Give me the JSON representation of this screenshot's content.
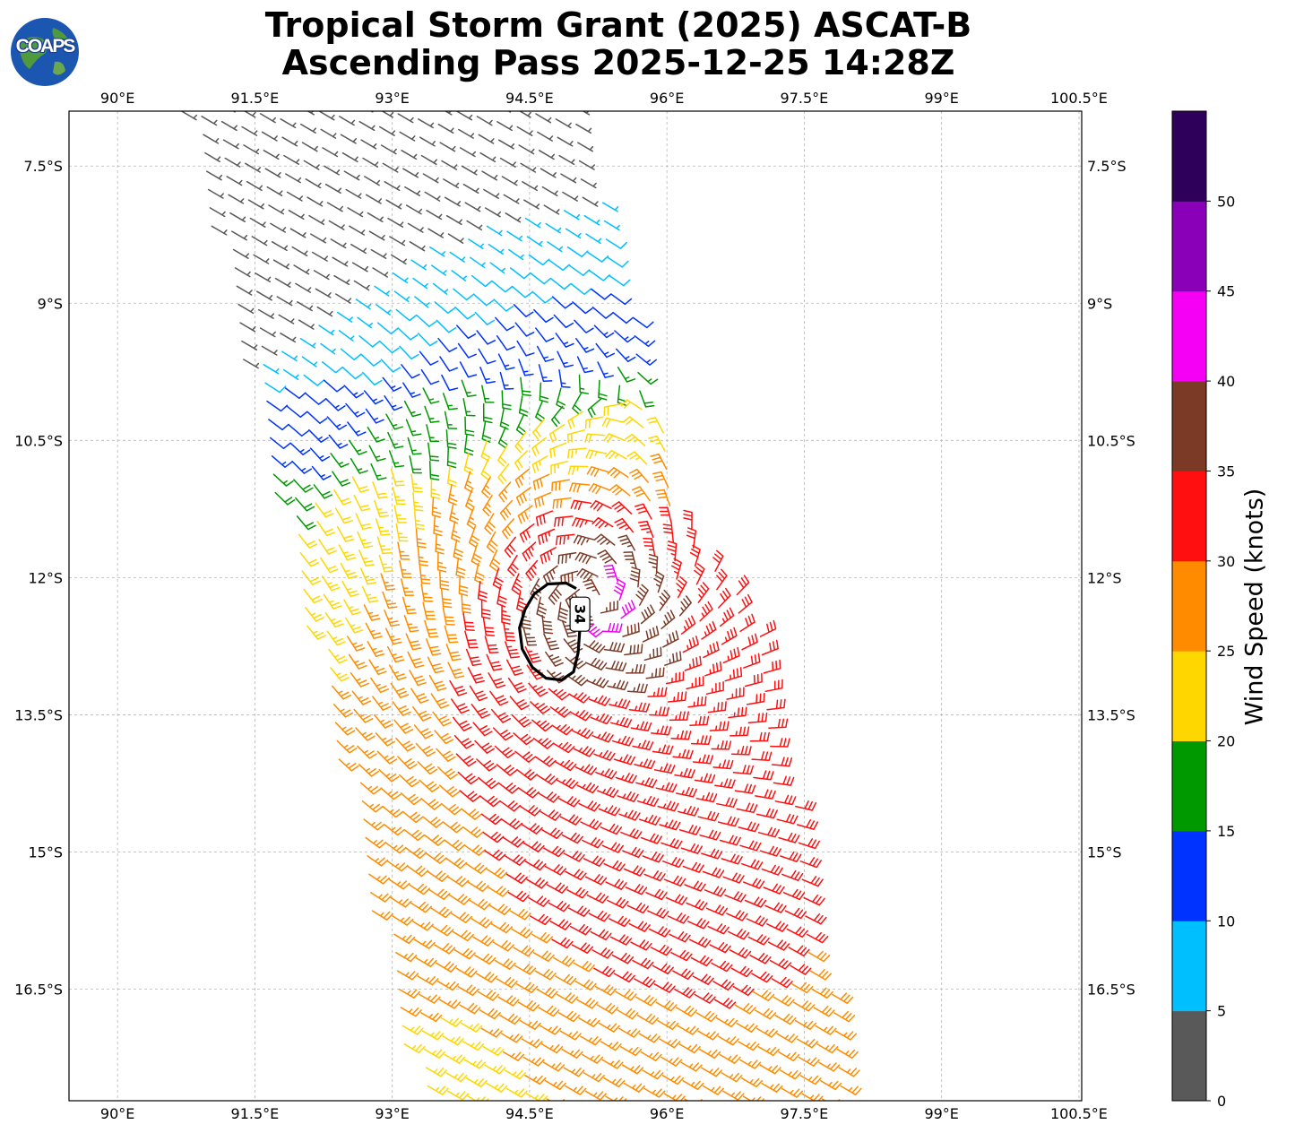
{
  "header": {
    "title_line1": "Tropical Storm Grant (2025) ASCAT-B",
    "title_line2": "Ascending Pass 2025-12-25 14:28Z",
    "logo_text": "COAPS"
  },
  "chart_data": {
    "type": "wind-barb map",
    "title": "Tropical Storm Grant (2025) ASCAT-B Ascending Pass 2025-12-25 14:28Z",
    "x_axis": {
      "ticks": [
        90,
        91.5,
        93,
        94.5,
        96,
        97.5,
        99,
        100.5
      ],
      "tick_labels": [
        "90°E",
        "91.5°E",
        "93°E",
        "94.5°E",
        "96°E",
        "97.5°E",
        "99°E",
        "100.5°E"
      ],
      "range": [
        89.47,
        100.53
      ]
    },
    "y_axis": {
      "ticks": [
        -7.5,
        -9,
        -10.5,
        -12,
        -13.5,
        -15,
        -16.5
      ],
      "tick_labels": [
        "7.5°S",
        "9°S",
        "10.5°S",
        "12°S",
        "13.5°S",
        "15°S",
        "16.5°S"
      ],
      "range": [
        -17.72,
        -6.9
      ]
    },
    "grid": true,
    "storm_center": {
      "lon": 95.2,
      "lat": -12.25
    },
    "contour": {
      "label": "34",
      "points": [
        [
          95.01,
          -12.12
        ],
        [
          94.9,
          -12.06
        ],
        [
          94.7,
          -12.07
        ],
        [
          94.55,
          -12.18
        ],
        [
          94.45,
          -12.35
        ],
        [
          94.39,
          -12.55
        ],
        [
          94.42,
          -12.78
        ],
        [
          94.53,
          -12.98
        ],
        [
          94.68,
          -13.1
        ],
        [
          94.85,
          -13.12
        ],
        [
          94.98,
          -13.03
        ],
        [
          95.03,
          -12.82
        ],
        [
          95.05,
          -12.55
        ]
      ],
      "label_pos": {
        "lon": 95.05,
        "lat": -12.4
      }
    },
    "colorbar": {
      "label": "Wind Speed (knots)",
      "bins": [
        0,
        5,
        10,
        15,
        20,
        25,
        30,
        35,
        40,
        45,
        50,
        55
      ],
      "colors": [
        "#595959",
        "#00bfff",
        "#0033ff",
        "#009900",
        "#ffd700",
        "#ff8c00",
        "#ff0f0f",
        "#7b3a26",
        "#f500f5",
        "#8a00b8",
        "#2e0059"
      ],
      "tick_values": [
        0,
        5,
        10,
        15,
        20,
        25,
        30,
        35,
        40,
        45,
        50
      ]
    },
    "swath": {
      "top_lat": -6.9,
      "bottom_lat": -17.72,
      "left_edge": [
        [
          -6.9,
          90.7
        ],
        [
          -12.0,
          91.95
        ],
        [
          -17.72,
          93.25
        ]
      ],
      "right_edge": [
        [
          -6.9,
          95.05
        ],
        [
          -11.3,
          96.2
        ],
        [
          -12.6,
          97.05
        ],
        [
          -17.72,
          98.05
        ]
      ]
    },
    "series": [
      {
        "name": "barb",
        "lon_step": 0.22,
        "lat_step": 0.2
      }
    ]
  }
}
